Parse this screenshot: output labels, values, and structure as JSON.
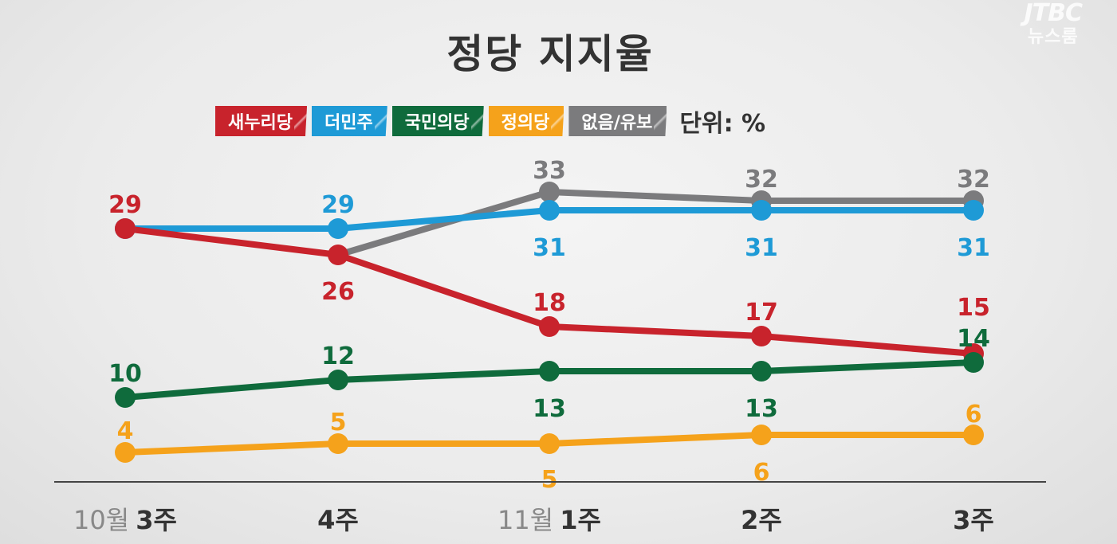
{
  "logo": {
    "brand": "JTBC",
    "sub": "뉴스룸"
  },
  "legend_unit": "단위: %",
  "chart_data": {
    "type": "line",
    "title": "정당 지지율",
    "xlabel": "",
    "ylabel": "",
    "categories": [
      {
        "prefix": "10월",
        "label": "3주"
      },
      {
        "prefix": "",
        "label": "4주"
      },
      {
        "prefix": "11월",
        "label": "1주"
      },
      {
        "prefix": "",
        "label": "2주"
      },
      {
        "prefix": "",
        "label": "3주"
      }
    ],
    "unit": "%",
    "ylim": [
      3,
      36
    ],
    "grid": false,
    "legend_position": "top",
    "series": [
      {
        "name": "새누리당",
        "color": "#c8232c",
        "values": [
          29,
          26,
          18,
          17,
          15
        ]
      },
      {
        "name": "더민주",
        "color": "#1e9ad6",
        "values": [
          29,
          29,
          31,
          31,
          31
        ]
      },
      {
        "name": "국민의당",
        "color": "#0f6b3c",
        "values": [
          10,
          12,
          13,
          13,
          14
        ]
      },
      {
        "name": "정의당",
        "color": "#f5a21b",
        "values": [
          4,
          5,
          5,
          6,
          6
        ]
      },
      {
        "name": "없음/유보",
        "color": "#7b7b7d",
        "values": [
          null,
          26,
          33,
          32,
          32
        ]
      }
    ],
    "value_labels": [
      {
        "series": 0,
        "point": 0,
        "text": "29"
      },
      {
        "series": 0,
        "point": 1,
        "text": "26"
      },
      {
        "series": 0,
        "point": 2,
        "text": "18"
      },
      {
        "series": 0,
        "point": 3,
        "text": "17"
      },
      {
        "series": 0,
        "point": 4,
        "text": "15"
      },
      {
        "series": 1,
        "point": 1,
        "text": "29"
      },
      {
        "series": 1,
        "point": 2,
        "text": "31"
      },
      {
        "series": 1,
        "point": 3,
        "text": "31"
      },
      {
        "series": 1,
        "point": 4,
        "text": "31"
      },
      {
        "series": 2,
        "point": 0,
        "text": "10"
      },
      {
        "series": 2,
        "point": 1,
        "text": "12"
      },
      {
        "series": 2,
        "point": 2,
        "text": "13"
      },
      {
        "series": 2,
        "point": 3,
        "text": "13"
      },
      {
        "series": 2,
        "point": 4,
        "text": "14"
      },
      {
        "series": 3,
        "point": 0,
        "text": "4"
      },
      {
        "series": 3,
        "point": 1,
        "text": "5"
      },
      {
        "series": 3,
        "point": 2,
        "text": "5"
      },
      {
        "series": 3,
        "point": 3,
        "text": "6"
      },
      {
        "series": 3,
        "point": 4,
        "text": "6"
      },
      {
        "series": 4,
        "point": 2,
        "text": "33"
      },
      {
        "series": 4,
        "point": 3,
        "text": "32"
      },
      {
        "series": 4,
        "point": 4,
        "text": "32"
      }
    ]
  }
}
